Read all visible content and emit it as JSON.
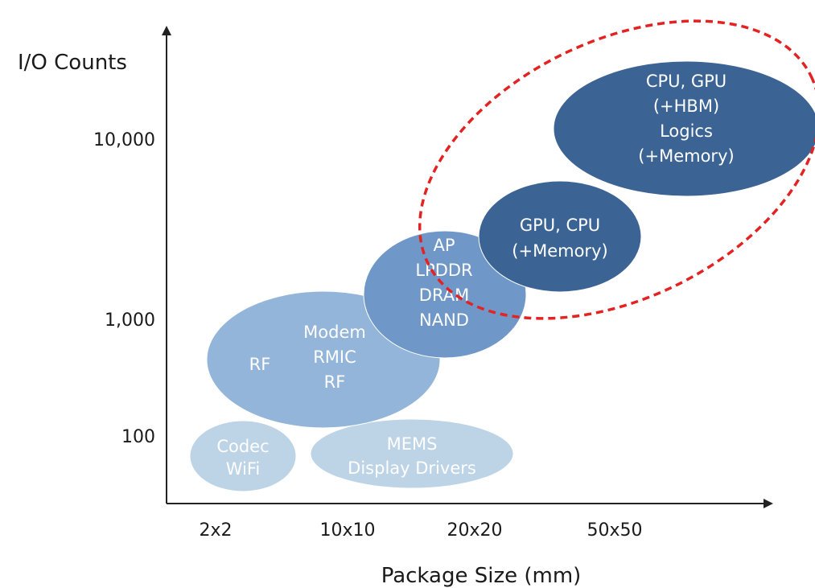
{
  "axes": {
    "y_title": "I/O Counts",
    "x_title": "Package Size (mm)",
    "y_ticks": [
      "10,000",
      "1,000",
      "100"
    ],
    "x_ticks": [
      "2x2",
      "10x10",
      "20x20",
      "50x50"
    ]
  },
  "blobs": [
    {
      "id": "codec",
      "lines": [
        "Codec",
        "WiFi"
      ],
      "color": "#bdd3e6",
      "text_color": "#ffffff"
    },
    {
      "id": "mems",
      "lines": [
        "MEMS",
        "Display Drivers"
      ],
      "color": "#bdd3e6",
      "text_color": "#ffffff"
    },
    {
      "id": "rf-mixed",
      "lines": [
        "Modem",
        "RMIC",
        "RF"
      ],
      "color": "#93b5d9",
      "text_color": "#ffffff"
    },
    {
      "id": "rf-big",
      "lines": [
        "RF"
      ],
      "color": "#93b5d9",
      "text_color": "#ffffff"
    },
    {
      "id": "memory",
      "lines": [
        "AP",
        "LPDDR",
        "DRAM",
        "NAND"
      ],
      "color": "#6f98c9",
      "text_color": "#ffffff"
    },
    {
      "id": "gpu-cpu",
      "lines": [
        "GPU, CPU",
        "(+Memory)"
      ],
      "color": "#3b6494",
      "text_color": "#ffffff"
    },
    {
      "id": "cpu-gpu-hbm",
      "lines": [
        "CPU, GPU",
        "(+HBM)",
        "Logics",
        "(+Memory)"
      ],
      "color": "#3b6494",
      "text_color": "#ffffff"
    }
  ],
  "highlight": {
    "color": "#e32222"
  }
}
